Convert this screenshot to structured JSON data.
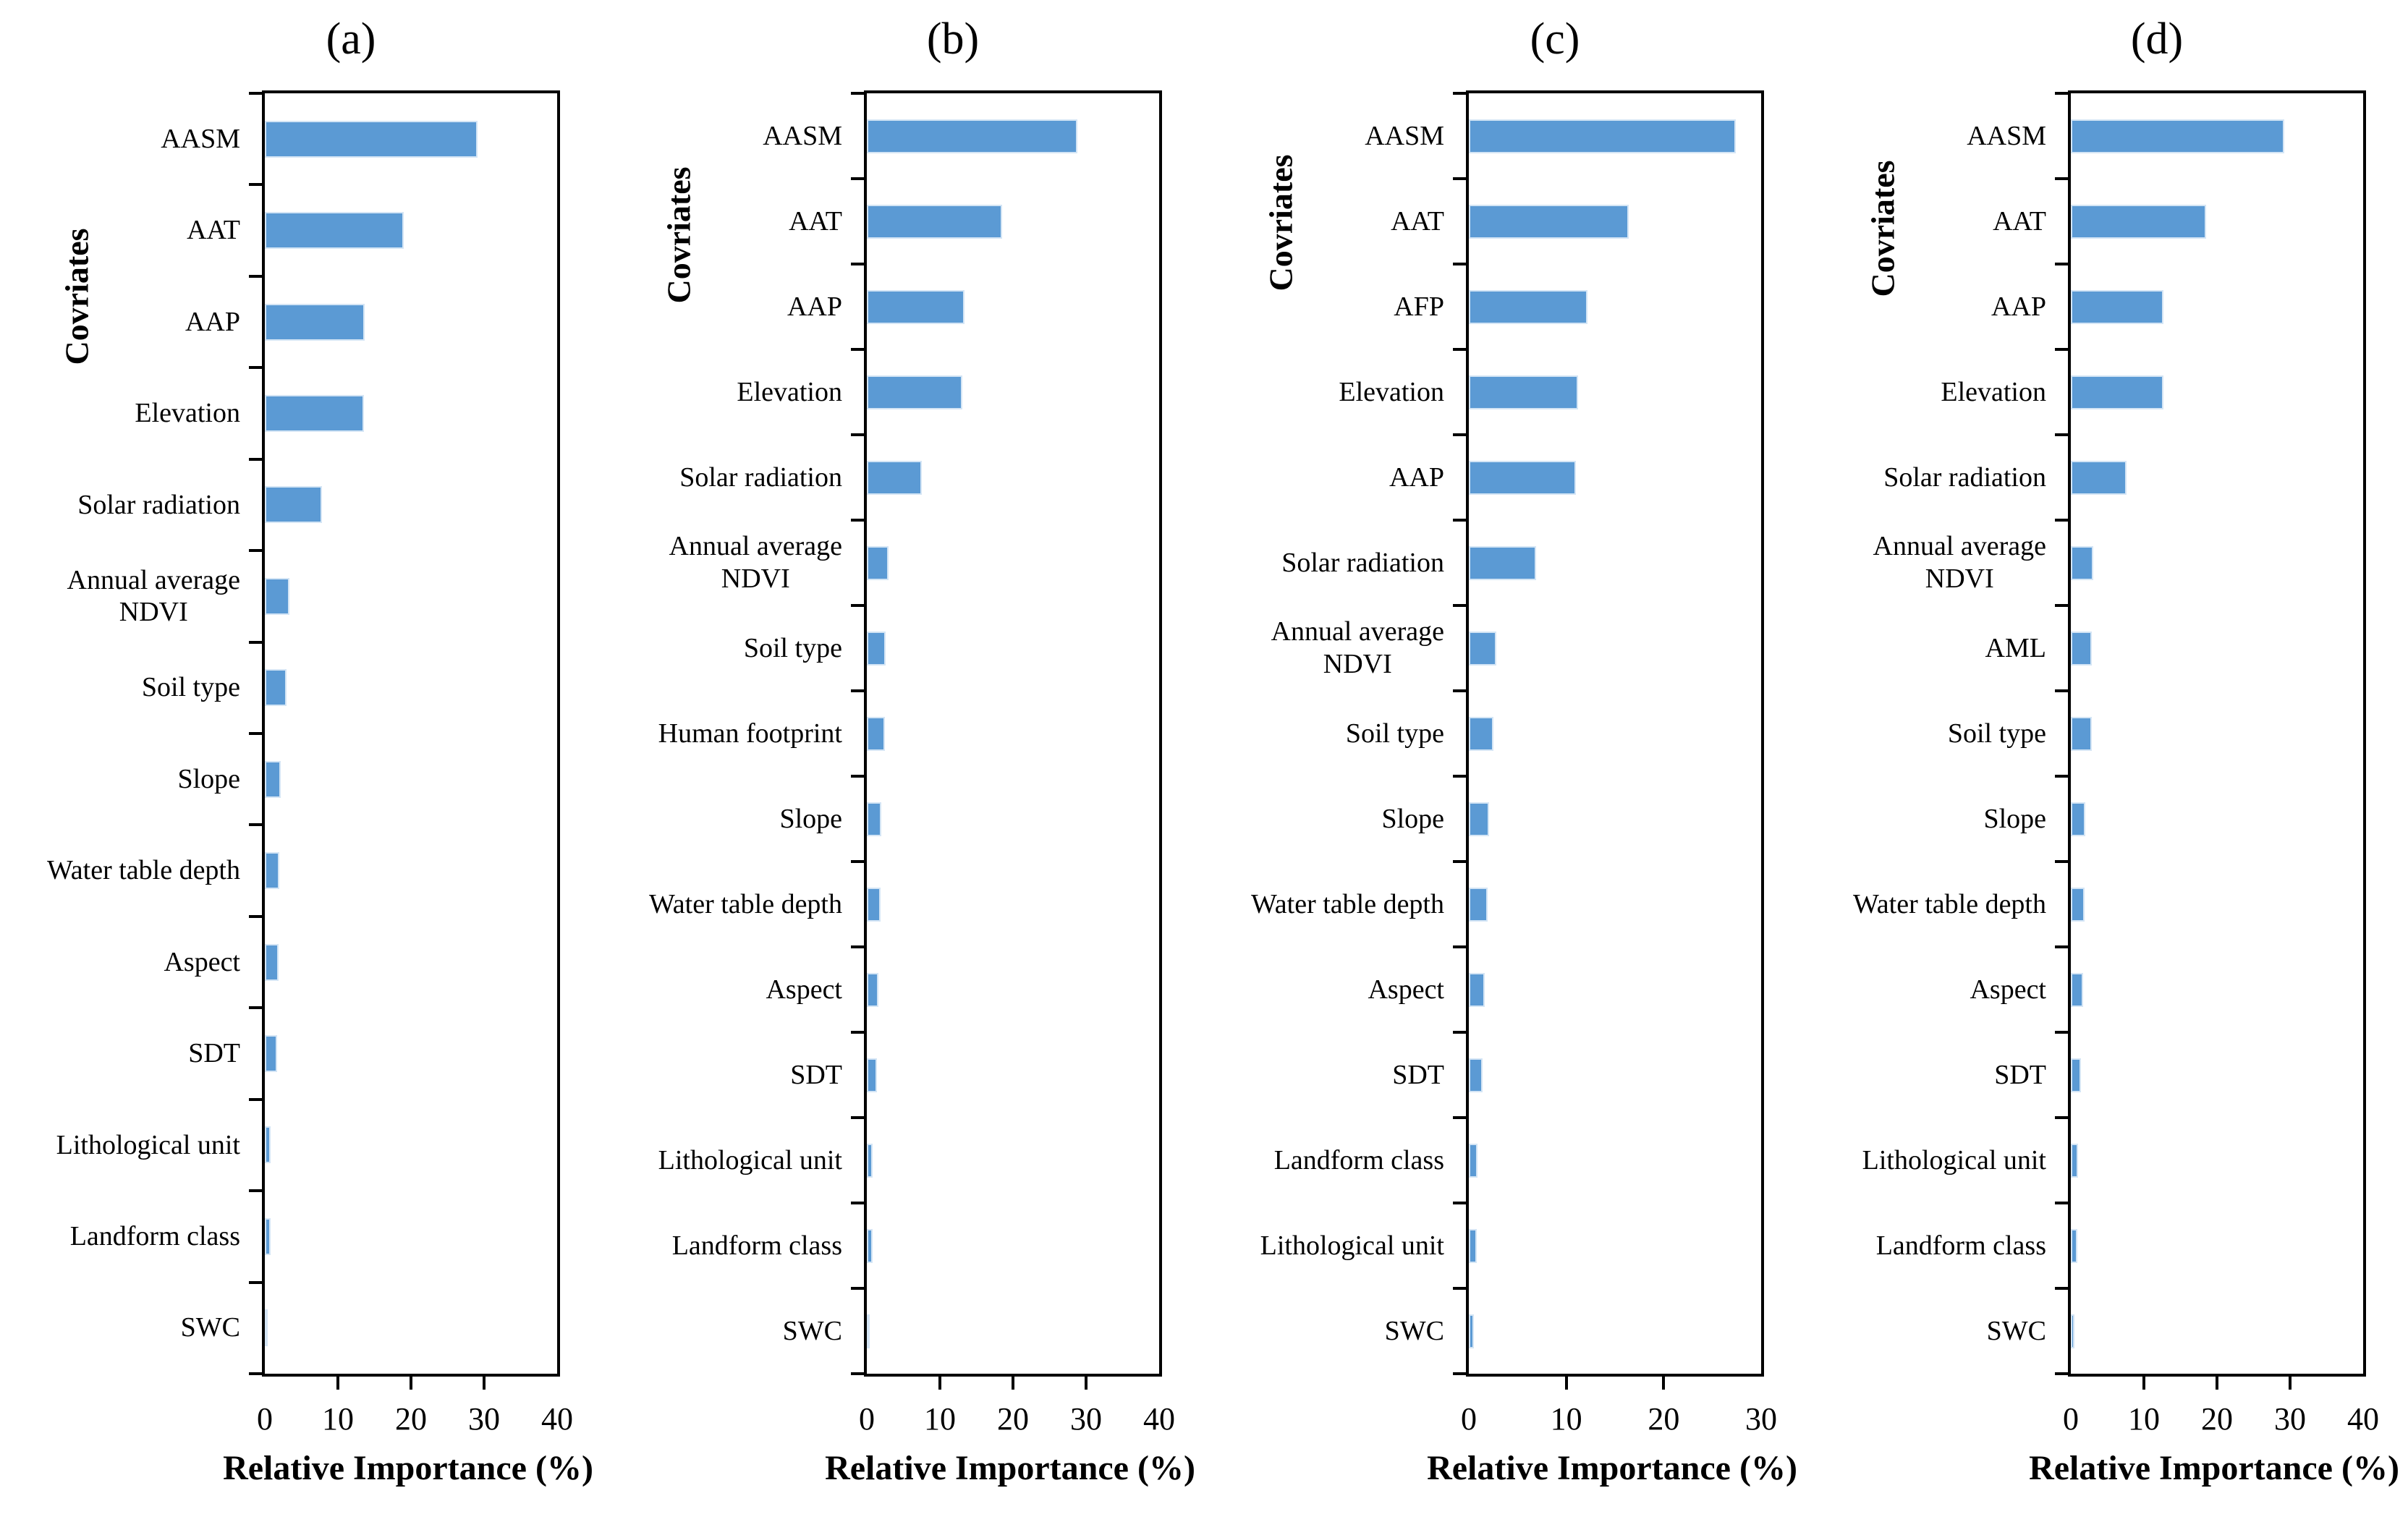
{
  "figure": {
    "background": "#FFFFFF",
    "bar_color": "#5B9AD4",
    "axis_color": "#000000",
    "text_color": "#000000"
  },
  "chart_data": [
    {
      "type": "bar",
      "orientation": "horizontal",
      "title": "(a)",
      "xlabel": "Relative Importance (%)",
      "ylabel": "Covriates",
      "xlim": [
        0,
        40
      ],
      "xticks": [
        0,
        10,
        20,
        30,
        40
      ],
      "grid": false,
      "legend": "none",
      "categories": [
        "AASM",
        "AAT",
        "AAP",
        "Elevation",
        "Solar radiation",
        "Annual average\nNDVI",
        "Soil type",
        "Slope",
        "Water table depth",
        "Aspect",
        "SDT",
        "Lithological unit",
        "Landform class",
        "SWC"
      ],
      "values": [
        29.1,
        19.0,
        13.7,
        13.6,
        7.8,
        3.4,
        3.0,
        2.2,
        2.0,
        1.9,
        1.7,
        0.8,
        0.8,
        0.4
      ]
    },
    {
      "type": "bar",
      "orientation": "horizontal",
      "title": "(b)",
      "xlabel": "Relative Importance (%)",
      "ylabel": "Covriates",
      "xlim": [
        0,
        40
      ],
      "xticks": [
        0,
        10,
        20,
        30,
        40
      ],
      "grid": false,
      "legend": "none",
      "categories": [
        "AASM",
        "AAT",
        "AAP",
        "Elevation",
        "Solar radiation",
        "Annual average\nNDVI",
        "Soil type",
        "Human footprint",
        "Slope",
        "Water table depth",
        "Aspect",
        "SDT",
        "Lithological unit",
        "Landform class",
        "SWC"
      ],
      "values": [
        28.8,
        18.5,
        13.4,
        13.1,
        7.5,
        3.0,
        2.6,
        2.5,
        2.0,
        1.9,
        1.6,
        1.4,
        0.8,
        0.8,
        0.4
      ]
    },
    {
      "type": "bar",
      "orientation": "horizontal",
      "title": "(c)",
      "xlabel": "Relative Importance (%)",
      "ylabel": "Covriates",
      "xlim": [
        0,
        30
      ],
      "xticks": [
        0,
        10,
        20,
        30
      ],
      "grid": false,
      "legend": "none",
      "categories": [
        "AASM",
        "AAT",
        "AFP",
        "Elevation",
        "AAP",
        "Solar radiation",
        "Annual average\nNDVI",
        "Soil type",
        "Slope",
        "Water table depth",
        "Aspect",
        "SDT",
        "Landform class",
        "Lithological unit",
        "SWC"
      ],
      "values": [
        27.4,
        16.4,
        12.2,
        11.2,
        11.0,
        6.9,
        2.8,
        2.5,
        2.1,
        1.9,
        1.6,
        1.4,
        0.9,
        0.8,
        0.5
      ]
    },
    {
      "type": "bar",
      "orientation": "horizontal",
      "title": "(d)",
      "xlabel": "Relative Importance (%)",
      "ylabel": "Covriates",
      "xlim": [
        0,
        40
      ],
      "xticks": [
        0,
        10,
        20,
        30,
        40
      ],
      "grid": false,
      "legend": "none",
      "categories": [
        "AASM",
        "AAT",
        "AAP",
        "Elevation",
        "Solar radiation",
        "Annual average\nNDVI",
        "AML",
        "Soil type",
        "Slope",
        "Water table depth",
        "Aspect",
        "SDT",
        "Lithological unit",
        "Landform class",
        "SWC"
      ],
      "values": [
        29.2,
        18.5,
        12.7,
        12.7,
        7.6,
        3.1,
        2.9,
        2.9,
        2.0,
        1.9,
        1.7,
        1.4,
        1.0,
        0.9,
        0.5
      ]
    }
  ]
}
